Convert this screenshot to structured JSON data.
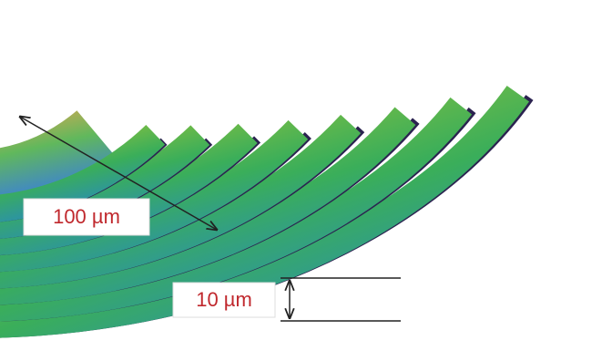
{
  "labels": {
    "width": "100 µm",
    "height": "10 µm"
  }
}
